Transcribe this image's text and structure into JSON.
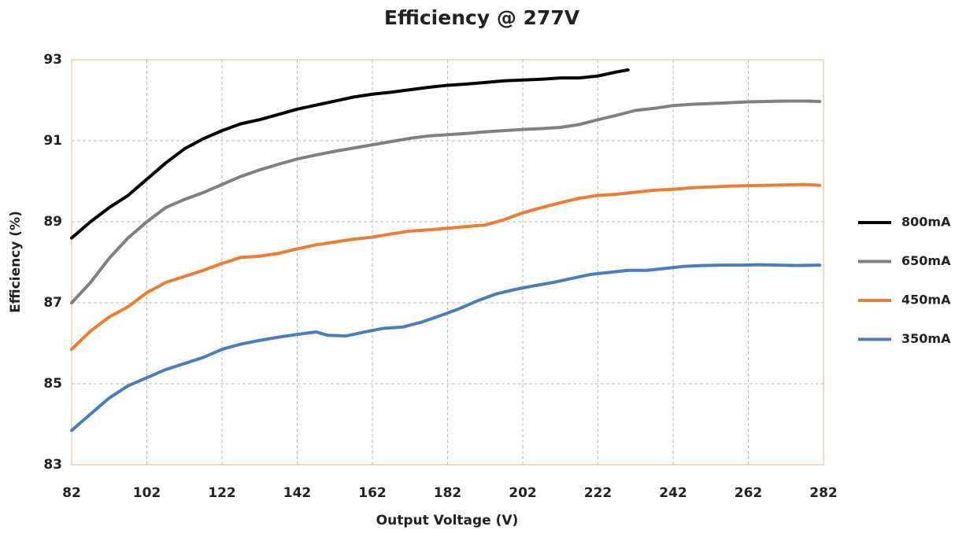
{
  "chart_data": {
    "type": "line",
    "title": "Efficiency @ 277V",
    "x_label": "Output Voltage (V)",
    "y_label": "Efficiency (%)",
    "xlim": [
      82,
      282
    ],
    "xticks": [
      82,
      102,
      122,
      142,
      162,
      182,
      202,
      222,
      242,
      262,
      282
    ],
    "ylim": [
      83,
      93
    ],
    "yticks": [
      83,
      85,
      87,
      89,
      91,
      93
    ],
    "grid": true,
    "legend": "right",
    "series": [
      {
        "name": "800mA",
        "color": "#000000",
        "x": [
          82,
          87,
          92,
          97,
          102,
          107,
          112,
          117,
          122,
          127,
          132,
          137,
          142,
          147,
          152,
          157,
          162,
          167,
          172,
          177,
          182,
          187,
          192,
          197,
          202,
          207,
          212,
          217,
          222,
          227,
          230
        ],
        "values": [
          88.6,
          89.0,
          89.35,
          89.65,
          90.05,
          90.45,
          90.8,
          91.05,
          91.25,
          91.42,
          91.52,
          91.65,
          91.78,
          91.88,
          91.98,
          92.08,
          92.15,
          92.2,
          92.26,
          92.32,
          92.37,
          92.4,
          92.44,
          92.48,
          92.5,
          92.52,
          92.55,
          92.55,
          92.6,
          92.7,
          92.75
        ]
      },
      {
        "name": "650mA",
        "color": "#808080",
        "x": [
          82,
          87,
          92,
          97,
          102,
          107,
          112,
          117,
          122,
          127,
          132,
          137,
          142,
          147,
          152,
          157,
          162,
          167,
          172,
          177,
          182,
          187,
          192,
          197,
          202,
          207,
          212,
          217,
          222,
          227,
          232,
          237,
          242,
          247,
          252,
          257,
          262,
          267,
          272,
          277,
          281
        ],
        "values": [
          87.0,
          87.5,
          88.1,
          88.6,
          89.0,
          89.35,
          89.55,
          89.72,
          89.92,
          90.12,
          90.28,
          90.42,
          90.55,
          90.65,
          90.74,
          90.82,
          90.9,
          90.98,
          91.06,
          91.12,
          91.15,
          91.18,
          91.22,
          91.25,
          91.28,
          91.3,
          91.33,
          91.4,
          91.52,
          91.63,
          91.75,
          91.8,
          91.87,
          91.9,
          91.92,
          91.94,
          91.96,
          91.97,
          91.98,
          91.98,
          91.97
        ]
      },
      {
        "name": "450mA",
        "color": "#ed7d31",
        "x": [
          82,
          87,
          92,
          97,
          102,
          107,
          112,
          117,
          122,
          127,
          132,
          137,
          142,
          147,
          152,
          157,
          162,
          167,
          172,
          177,
          182,
          187,
          192,
          197,
          202,
          207,
          212,
          217,
          222,
          227,
          232,
          237,
          242,
          247,
          252,
          257,
          262,
          267,
          272,
          277,
          281
        ],
        "values": [
          85.85,
          86.3,
          86.65,
          86.9,
          87.25,
          87.5,
          87.65,
          87.8,
          87.97,
          88.12,
          88.15,
          88.22,
          88.33,
          88.43,
          88.5,
          88.57,
          88.62,
          88.7,
          88.77,
          88.8,
          88.84,
          88.88,
          88.92,
          89.05,
          89.22,
          89.35,
          89.47,
          89.58,
          89.65,
          89.68,
          89.73,
          89.78,
          89.8,
          89.84,
          89.86,
          89.88,
          89.89,
          89.9,
          89.91,
          89.92,
          89.9
        ]
      },
      {
        "name": "350mA",
        "color": "#4a7ebb",
        "x": [
          82,
          87,
          92,
          97,
          102,
          107,
          112,
          117,
          122,
          127,
          132,
          137,
          142,
          147,
          150,
          155,
          160,
          165,
          170,
          175,
          180,
          185,
          190,
          195,
          200,
          205,
          210,
          215,
          220,
          225,
          230,
          235,
          240,
          245,
          250,
          255,
          260,
          265,
          270,
          275,
          281
        ],
        "values": [
          83.85,
          84.25,
          84.65,
          84.95,
          85.15,
          85.35,
          85.5,
          85.65,
          85.85,
          85.98,
          86.07,
          86.15,
          86.22,
          86.28,
          86.2,
          86.18,
          86.28,
          86.37,
          86.4,
          86.52,
          86.68,
          86.85,
          87.05,
          87.22,
          87.33,
          87.42,
          87.5,
          87.6,
          87.7,
          87.75,
          87.8,
          87.8,
          87.85,
          87.9,
          87.92,
          87.93,
          87.93,
          87.94,
          87.93,
          87.92,
          87.93
        ]
      }
    ]
  }
}
